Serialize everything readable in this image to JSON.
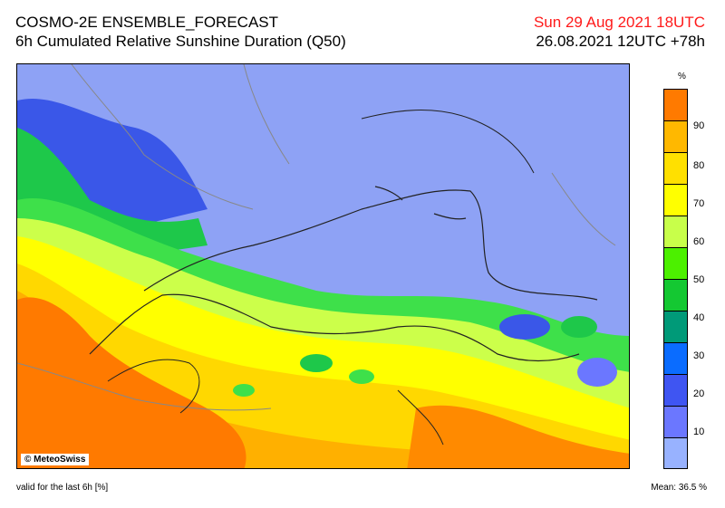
{
  "header": {
    "title": "COSMO-2E ENSEMBLE_FORECAST",
    "subtitle": "6h Cumulated Relative Sunshine Duration (Q50)",
    "valid_time": "Sun 29 Aug 2021 18UTC",
    "run_info": "26.08.2021 12UTC +78h"
  },
  "map": {
    "credit": "© MeteoSwiss"
  },
  "legend": {
    "unit": "%",
    "ticks": [
      "90",
      "80",
      "70",
      "60",
      "50",
      "40",
      "30",
      "20",
      "10"
    ],
    "colors": [
      "#ff7a00",
      "#ffb800",
      "#ffe000",
      "#ffff00",
      "#c8ff4a",
      "#4cf000",
      "#14c832",
      "#009a78",
      "#0a6cff",
      "#3f55f2",
      "#6b77ff",
      "#98b2ff"
    ]
  },
  "footer": {
    "note": "valid for the last 6h [%]",
    "mean": "Mean:   36.5 %"
  }
}
